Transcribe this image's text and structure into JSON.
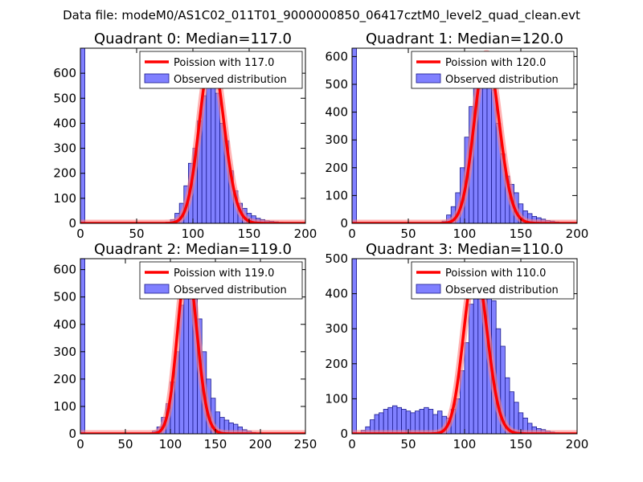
{
  "figure_title": "Data file: modeM0/AS1C02_011T01_9000000850_06417cztM0_level2_quad_clean.evt",
  "colors": {
    "bar_fill": "#8080ff",
    "bar_stroke": "#1a1a8c",
    "curve": "#ff0000",
    "curve_glow": "#ff8080",
    "frame": "#000000"
  },
  "chart_data": [
    {
      "type": "bar",
      "title": "Quadrant 0: Median=117.0",
      "xlim": [
        0,
        200
      ],
      "ylim": [
        0,
        700
      ],
      "xticks": [
        0,
        50,
        100,
        150,
        200
      ],
      "yticks": [
        0,
        100,
        200,
        300,
        400,
        500,
        600
      ],
      "bin_width": 4,
      "legend": {
        "placement": "top-right",
        "curve_label": "Poission with 117.0",
        "hist_label": "Observed distribution"
      },
      "poisson_mean": 117.0,
      "poisson_peak": 670,
      "hist": {
        "bins": [
          0,
          72,
          76,
          80,
          84,
          88,
          92,
          96,
          100,
          104,
          108,
          112,
          116,
          120,
          124,
          128,
          132,
          136,
          140,
          144,
          148,
          152,
          156,
          160,
          164,
          168,
          172,
          176,
          180,
          184,
          188
        ],
        "counts": [
          700,
          3,
          5,
          15,
          40,
          80,
          150,
          240,
          300,
          410,
          510,
          560,
          630,
          520,
          400,
          330,
          210,
          130,
          80,
          60,
          40,
          30,
          20,
          15,
          10,
          8,
          6,
          4,
          3,
          2,
          1
        ]
      }
    },
    {
      "type": "bar",
      "title": "Quadrant 1: Median=120.0",
      "xlim": [
        0,
        200
      ],
      "ylim": [
        0,
        630
      ],
      "xticks": [
        0,
        50,
        100,
        150,
        200
      ],
      "yticks": [
        0,
        100,
        200,
        300,
        400,
        500,
        600
      ],
      "bin_width": 4,
      "legend": {
        "placement": "top-right",
        "curve_label": "Poission with 120.0",
        "hist_label": "Observed distribution"
      },
      "poisson_mean": 120.0,
      "poisson_peak": 610,
      "hist": {
        "bins": [
          0,
          80,
          84,
          88,
          92,
          96,
          100,
          104,
          108,
          112,
          116,
          120,
          124,
          128,
          132,
          136,
          140,
          144,
          148,
          152,
          156,
          160,
          164,
          168,
          172,
          176,
          180,
          184,
          188
        ],
        "counts": [
          630,
          8,
          30,
          60,
          110,
          200,
          310,
          420,
          500,
          530,
          600,
          610,
          480,
          360,
          250,
          170,
          140,
          110,
          70,
          45,
          35,
          25,
          20,
          15,
          10,
          8,
          5,
          3,
          2
        ]
      }
    },
    {
      "type": "bar",
      "title": "Quadrant 2: Median=119.0",
      "xlim": [
        0,
        250
      ],
      "ylim": [
        0,
        640
      ],
      "xticks": [
        0,
        50,
        100,
        150,
        200,
        250
      ],
      "yticks": [
        0,
        100,
        200,
        300,
        400,
        500,
        600
      ],
      "bin_width": 5,
      "legend": {
        "placement": "top-right",
        "curve_label": "Poission with 119.0",
        "hist_label": "Observed distribution"
      },
      "poisson_mean": 119.0,
      "poisson_peak": 610,
      "hist": {
        "bins": [
          0,
          80,
          85,
          90,
          95,
          100,
          105,
          110,
          115,
          120,
          125,
          130,
          135,
          140,
          145,
          150,
          155,
          160,
          165,
          170,
          175,
          180,
          185,
          190,
          195
        ],
        "counts": [
          640,
          10,
          25,
          60,
          110,
          190,
          300,
          470,
          560,
          600,
          540,
          420,
          300,
          200,
          130,
          80,
          60,
          50,
          40,
          35,
          25,
          15,
          10,
          5,
          3
        ]
      }
    },
    {
      "type": "bar",
      "title": "Quadrant 3: Median=110.0",
      "xlim": [
        0,
        200
      ],
      "ylim": [
        0,
        500
      ],
      "xticks": [
        0,
        50,
        100,
        150,
        200
      ],
      "yticks": [
        0,
        100,
        200,
        300,
        400,
        500
      ],
      "bin_width": 4,
      "legend": {
        "placement": "top-right",
        "curve_label": "Poission with 110.0",
        "hist_label": "Observed distribution"
      },
      "poisson_mean": 110.0,
      "poisson_peak": 475,
      "hist": {
        "bins": [
          0,
          8,
          12,
          16,
          20,
          24,
          28,
          32,
          36,
          40,
          44,
          48,
          52,
          56,
          60,
          64,
          68,
          72,
          76,
          80,
          84,
          88,
          92,
          96,
          100,
          104,
          108,
          112,
          116,
          120,
          124,
          128,
          132,
          136,
          140,
          144,
          148,
          152,
          156,
          160,
          164,
          168,
          172,
          176,
          180,
          184,
          188
        ],
        "counts": [
          500,
          10,
          20,
          40,
          55,
          60,
          70,
          75,
          80,
          75,
          70,
          65,
          60,
          65,
          70,
          75,
          70,
          55,
          65,
          50,
          45,
          70,
          100,
          180,
          260,
          370,
          420,
          450,
          475,
          470,
          380,
          300,
          250,
          160,
          120,
          90,
          60,
          45,
          30,
          20,
          15,
          12,
          8,
          5,
          3,
          2,
          1
        ]
      }
    }
  ]
}
